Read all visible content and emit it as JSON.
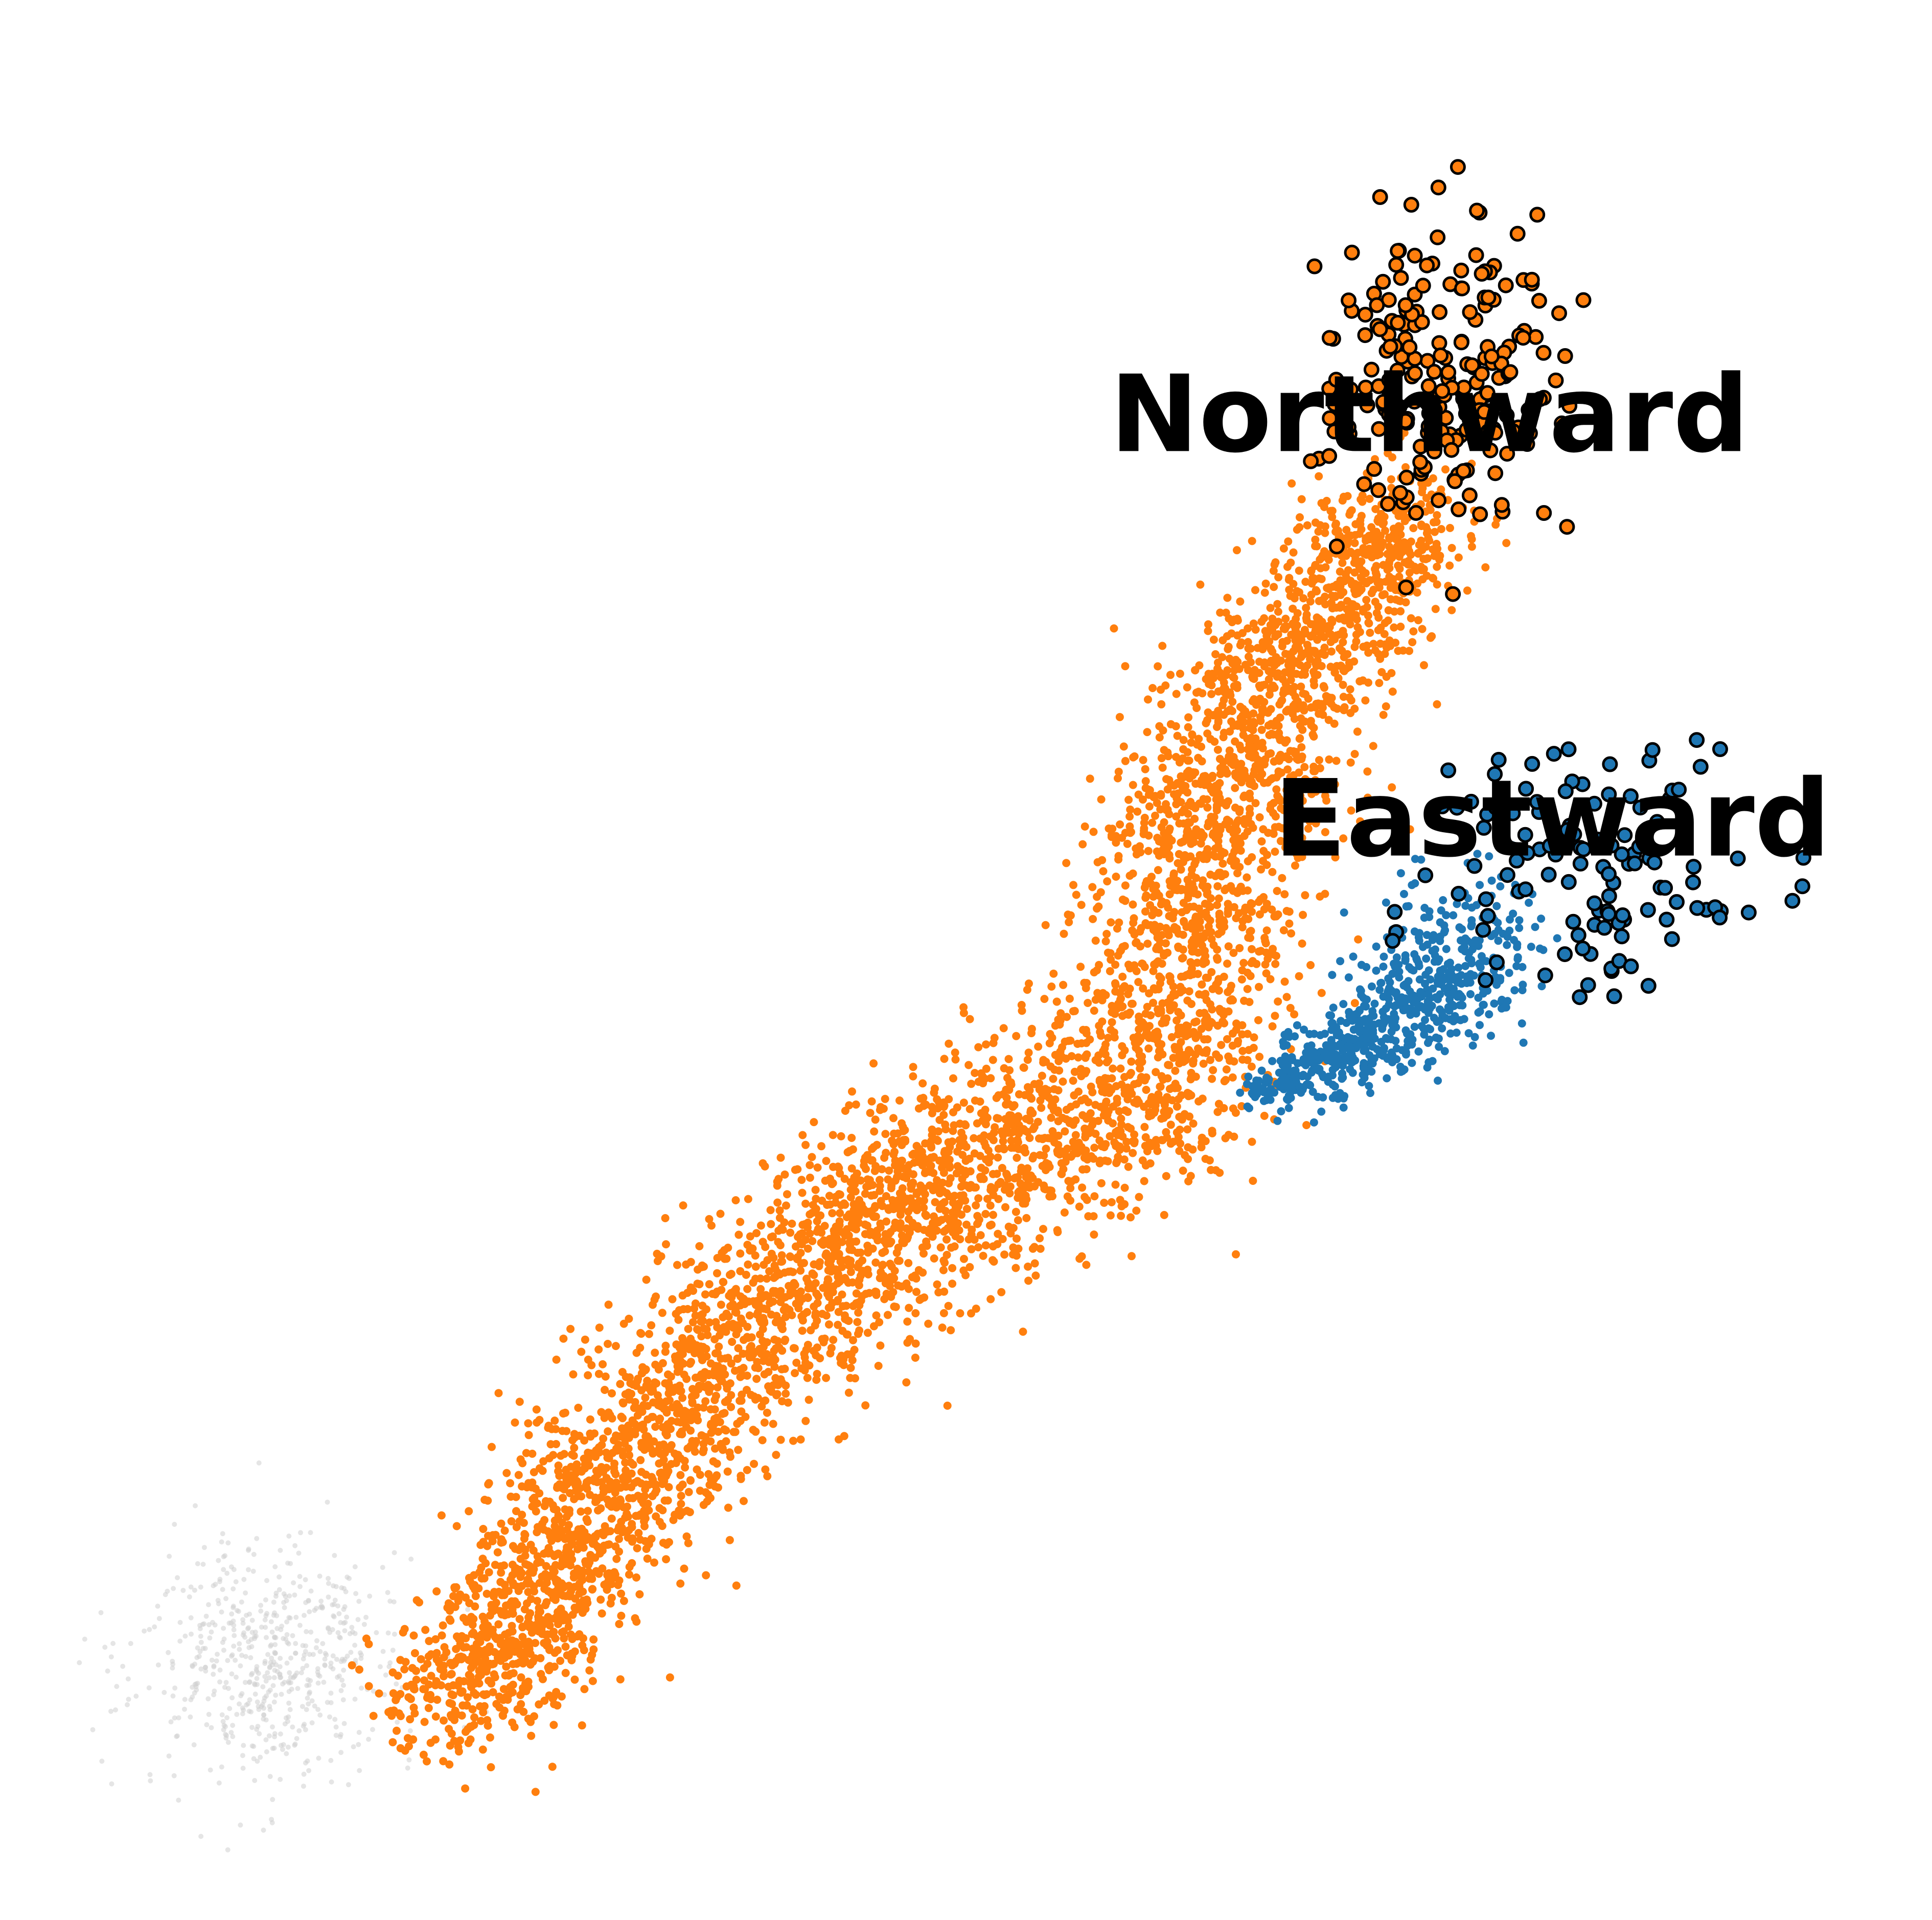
{
  "chart_data": {
    "type": "scatter",
    "title": "",
    "xlabel": "",
    "ylabel": "",
    "axes_visible": false,
    "grid": false,
    "legend": "none",
    "xlim": [
      0,
      1
    ],
    "ylim": [
      0,
      1
    ],
    "series": [
      {
        "name": "",
        "color": "#d0d0d0",
        "role": "background-cells",
        "approx_count": 600,
        "center": [
          0.1,
          0.1
        ]
      },
      {
        "name": "",
        "color": "#ff7f0e",
        "role": "northward-lineage",
        "approx_count": 5200,
        "path": [
          [
            0.2,
            0.07
          ],
          [
            0.27,
            0.17
          ],
          [
            0.35,
            0.27
          ],
          [
            0.44,
            0.35
          ],
          [
            0.54,
            0.4
          ],
          [
            0.6,
            0.43
          ],
          [
            0.62,
            0.5
          ],
          [
            0.63,
            0.58
          ],
          [
            0.67,
            0.65
          ],
          [
            0.71,
            0.7
          ],
          [
            0.75,
            0.76
          ]
        ]
      },
      {
        "name": "",
        "color": "#1f77b4",
        "role": "eastward-lineage",
        "approx_count": 700,
        "path": [
          [
            0.66,
            0.42
          ],
          [
            0.71,
            0.45
          ],
          [
            0.76,
            0.48
          ],
          [
            0.79,
            0.52
          ]
        ]
      },
      {
        "name": "",
        "color": "#ff7f0e",
        "role": "northward-terminal",
        "outlined": true,
        "approx_count": 220,
        "center": [
          0.76,
          0.83
        ]
      },
      {
        "name": "",
        "color": "#1f77b4",
        "role": "eastward-terminal",
        "outlined": true,
        "approx_count": 120,
        "center": [
          0.85,
          0.55
        ]
      }
    ],
    "annotations": [
      {
        "text": "Northward",
        "x": 0.76,
        "y": 0.79
      },
      {
        "text": "Eastward",
        "x": 0.83,
        "y": 0.56
      }
    ]
  }
}
